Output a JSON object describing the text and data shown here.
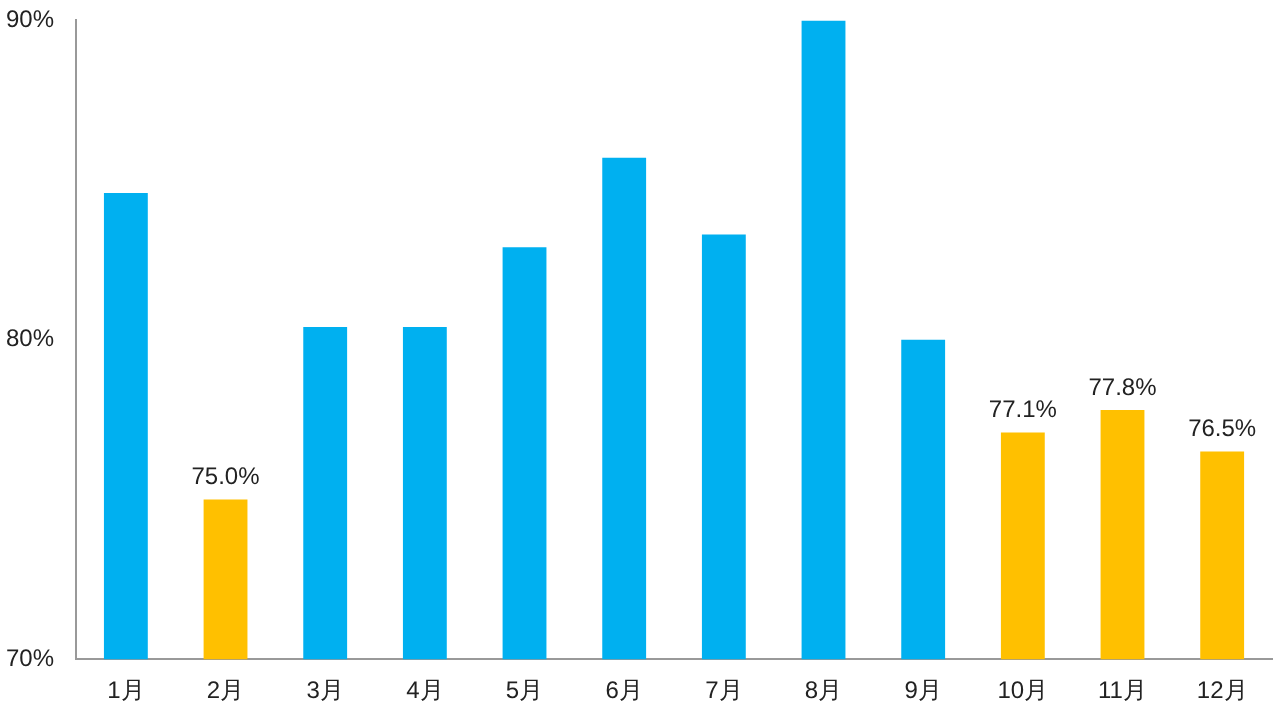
{
  "chart_data": {
    "type": "bar",
    "categories": [
      "1月",
      "2月",
      "3月",
      "4月",
      "5月",
      "6月",
      "7月",
      "8月",
      "9月",
      "10月",
      "11月",
      "12月"
    ],
    "values": [
      84.6,
      75.0,
      80.4,
      80.4,
      82.9,
      85.7,
      83.3,
      90.0,
      80.0,
      77.1,
      77.8,
      76.5
    ],
    "colors": [
      "#00b0f0",
      "#ffc000",
      "#00b0f0",
      "#00b0f0",
      "#00b0f0",
      "#00b0f0",
      "#00b0f0",
      "#00b0f0",
      "#00b0f0",
      "#ffc000",
      "#ffc000",
      "#ffc000"
    ],
    "value_labels": [
      null,
      "75.0%",
      null,
      null,
      null,
      null,
      null,
      null,
      null,
      "77.1%",
      "77.8%",
      "76.5%"
    ],
    "ylim": [
      70,
      90
    ],
    "yticks": [
      {
        "value": 70,
        "label": "70%"
      },
      {
        "value": 80,
        "label": "80%"
      },
      {
        "value": 90,
        "label": "90%"
      }
    ],
    "legend": false
  }
}
